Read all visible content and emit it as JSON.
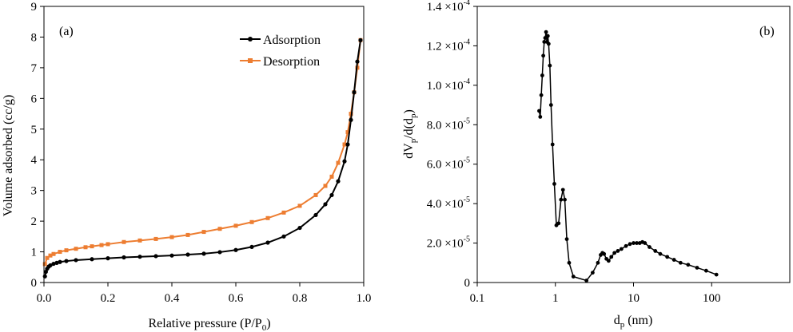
{
  "chart_data": [
    {
      "type": "line",
      "panel_label": "(a)",
      "xlabel": "Relative pressure (P/P",
      "xlabel_sub": "0",
      "xlabel_end": ")",
      "ylabel": "Volume adsorbed (cc/g)",
      "xlim": [
        0,
        1
      ],
      "ylim": [
        0,
        9
      ],
      "xticks": [
        0.0,
        0.2,
        0.4,
        0.6,
        0.8,
        1.0
      ],
      "xtick_labels": [
        "0.0",
        "0.2",
        "0.4",
        "0.6",
        "0.8",
        "1.0"
      ],
      "yticks": [
        0,
        1,
        2,
        3,
        4,
        5,
        6,
        7,
        8,
        9
      ],
      "ytick_labels": [
        "0",
        "1",
        "2",
        "3",
        "4",
        "5",
        "6",
        "7",
        "8",
        "9"
      ],
      "legend_position": "top-right",
      "series": [
        {
          "name": "Adsorption",
          "color": "#000000",
          "marker": "circle",
          "x": [
            0.003,
            0.006,
            0.01,
            0.015,
            0.02,
            0.03,
            0.04,
            0.05,
            0.07,
            0.1,
            0.15,
            0.2,
            0.25,
            0.3,
            0.35,
            0.4,
            0.45,
            0.5,
            0.55,
            0.6,
            0.65,
            0.7,
            0.75,
            0.8,
            0.85,
            0.88,
            0.9,
            0.92,
            0.94,
            0.95,
            0.96,
            0.97,
            0.98,
            0.99
          ],
          "y": [
            0.2,
            0.35,
            0.45,
            0.52,
            0.56,
            0.61,
            0.64,
            0.67,
            0.7,
            0.73,
            0.76,
            0.79,
            0.82,
            0.84,
            0.86,
            0.88,
            0.91,
            0.94,
            0.99,
            1.06,
            1.16,
            1.3,
            1.5,
            1.78,
            2.2,
            2.55,
            2.85,
            3.3,
            3.95,
            4.5,
            5.3,
            6.2,
            7.2,
            7.9
          ]
        },
        {
          "name": "Desorption",
          "color": "#ed7d31",
          "marker": "square",
          "x": [
            0.003,
            0.01,
            0.02,
            0.03,
            0.05,
            0.07,
            0.1,
            0.13,
            0.15,
            0.18,
            0.2,
            0.25,
            0.3,
            0.35,
            0.4,
            0.45,
            0.5,
            0.55,
            0.6,
            0.65,
            0.7,
            0.75,
            0.8,
            0.85,
            0.88,
            0.9,
            0.92,
            0.94,
            0.95,
            0.96,
            0.97,
            0.98,
            0.99
          ],
          "y": [
            0.6,
            0.8,
            0.88,
            0.93,
            1.0,
            1.05,
            1.1,
            1.15,
            1.18,
            1.22,
            1.25,
            1.32,
            1.37,
            1.42,
            1.48,
            1.55,
            1.65,
            1.75,
            1.85,
            1.97,
            2.1,
            2.28,
            2.5,
            2.85,
            3.15,
            3.45,
            3.9,
            4.5,
            4.9,
            5.5,
            6.2,
            7.0,
            7.9
          ]
        }
      ]
    },
    {
      "type": "line",
      "panel_label": "(b)",
      "xlabel": "d",
      "xlabel_sub": "p",
      "xlabel_end": " (nm)",
      "ylabel_parts": [
        "dV",
        "p",
        "/d(d",
        "p",
        ")"
      ],
      "xscale": "log",
      "xlim": [
        0.1,
        1000
      ],
      "ylim": [
        0,
        0.00014
      ],
      "xticks": [
        0.1,
        1,
        10,
        100
      ],
      "xtick_labels": [
        "0.1",
        "1",
        "10",
        "100"
      ],
      "yticks": [
        0,
        2e-05,
        4e-05,
        6e-05,
        8e-05,
        0.0001,
        0.00012,
        0.00014
      ],
      "ytick_mantissas": [
        "0",
        "2.0 ×10",
        "4.0 ×10",
        "6.0 ×10",
        "8.0 ×10",
        "1.0 ×10",
        "1.2 ×10",
        "1.4 ×10"
      ],
      "ytick_exponents": [
        "",
        "-5",
        "-5",
        "-5",
        "-5",
        "-4",
        "-4",
        "-4"
      ],
      "series": [
        {
          "color": "#000000",
          "marker": "circle",
          "x": [
            0.62,
            0.64,
            0.66,
            0.68,
            0.7,
            0.72,
            0.74,
            0.76,
            0.78,
            0.8,
            0.82,
            0.85,
            0.88,
            0.92,
            0.97,
            1.03,
            1.1,
            1.18,
            1.25,
            1.32,
            1.4,
            1.5,
            1.7,
            2.5,
            3.0,
            3.5,
            3.8,
            4.0,
            4.2,
            4.5,
            4.8,
            5.2,
            5.7,
            6.3,
            7.0,
            8.0,
            9.0,
            10.0,
            11.0,
            12.0,
            13.0,
            14.0,
            16.0,
            19.0,
            22.0,
            27.0,
            33.0,
            40.0,
            50.0,
            65.0,
            85.0,
            115.0
          ],
          "y": [
            8.7e-05,
            8.4e-05,
            9.5e-05,
            0.000105,
            0.000115,
            0.000122,
            0.000124,
            0.000127,
            0.000122,
            0.000125,
            0.000121,
            0.00011,
            9e-05,
            7e-05,
            5e-05,
            2.9e-05,
            3e-05,
            4.2e-05,
            4.7e-05,
            4.2e-05,
            2.2e-05,
            1e-05,
            3e-06,
            1e-06,
            5e-06,
            1e-05,
            1.4e-05,
            1.5e-05,
            1.45e-05,
            1.2e-05,
            1.1e-05,
            1.3e-05,
            1.5e-05,
            1.6e-05,
            1.7e-05,
            1.85e-05,
            1.95e-05,
            2e-05,
            2e-05,
            2e-05,
            2.05e-05,
            2e-05,
            1.8e-05,
            1.6e-05,
            1.45e-05,
            1.3e-05,
            1.15e-05,
            1e-05,
            9e-06,
            7.5e-06,
            6e-06,
            4e-06
          ]
        }
      ]
    }
  ]
}
